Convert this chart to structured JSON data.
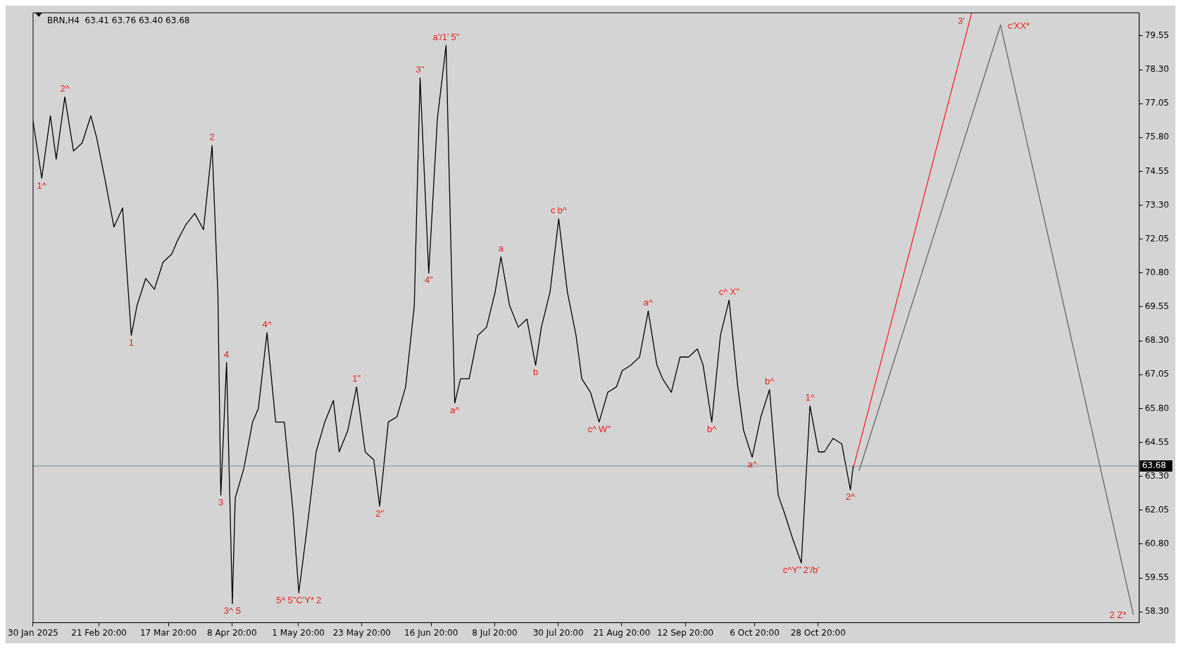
{
  "chart_data": {
    "type": "line",
    "title": "BRN,H4  63.41 63.76 63.40 63.68",
    "x": [
      "2025-01-30",
      "2025-02-02",
      "2025-02-05",
      "2025-02-07",
      "2025-02-10",
      "2025-02-13",
      "2025-02-16",
      "2025-02-19",
      "2025-02-21",
      "2025-02-24",
      "2025-02-27",
      "2025-03-02",
      "2025-03-05",
      "2025-03-07",
      "2025-03-10",
      "2025-03-13",
      "2025-03-16",
      "2025-03-19",
      "2025-03-21",
      "2025-03-24",
      "2025-03-27",
      "2025-03-30",
      "2025-04-02",
      "2025-04-04",
      "2025-04-05",
      "2025-04-07",
      "2025-04-09",
      "2025-04-10",
      "2025-04-13",
      "2025-04-16",
      "2025-04-18",
      "2025-04-21",
      "2025-04-24",
      "2025-04-27",
      "2025-04-30",
      "2025-05-02",
      "2025-05-05",
      "2025-05-08",
      "2025-05-11",
      "2025-05-14",
      "2025-05-16",
      "2025-05-19",
      "2025-05-22",
      "2025-05-25",
      "2025-05-28",
      "2025-05-30",
      "2025-06-02",
      "2025-06-05",
      "2025-06-08",
      "2025-06-11",
      "2025-06-13",
      "2025-06-16",
      "2025-06-19",
      "2025-06-22",
      "2025-06-25",
      "2025-06-27",
      "2025-06-30",
      "2025-07-03",
      "2025-07-06",
      "2025-07-09",
      "2025-07-11",
      "2025-07-14",
      "2025-07-17",
      "2025-07-20",
      "2025-07-23",
      "2025-07-25",
      "2025-07-28",
      "2025-07-31",
      "2025-08-03",
      "2025-08-06",
      "2025-08-08",
      "2025-08-11",
      "2025-08-14",
      "2025-08-17",
      "2025-08-20",
      "2025-08-22",
      "2025-08-25",
      "2025-08-28",
      "2025-08-31",
      "2025-09-03",
      "2025-09-05",
      "2025-09-08",
      "2025-09-11",
      "2025-09-14",
      "2025-09-17",
      "2025-09-19",
      "2025-09-22",
      "2025-09-25",
      "2025-09-28",
      "2025-10-01",
      "2025-10-03",
      "2025-10-06",
      "2025-10-09",
      "2025-10-12",
      "2025-10-15",
      "2025-10-17",
      "2025-10-20",
      "2025-10-23",
      "2025-10-26",
      "2025-10-29",
      "2025-10-31",
      "2025-11-03",
      "2025-11-06",
      "2025-11-09",
      "2025-11-10"
    ],
    "series": [
      {
        "color": "#000000",
        "values": [
          76.4,
          74.3,
          76.6,
          75.0,
          77.3,
          75.3,
          75.6,
          76.6,
          75.8,
          74.2,
          72.5,
          73.2,
          68.5,
          69.6,
          70.6,
          70.2,
          71.2,
          71.5,
          72.0,
          72.6,
          73.0,
          72.4,
          75.5,
          70.0,
          62.6,
          67.5,
          58.6,
          62.5,
          63.6,
          65.3,
          65.8,
          68.6,
          65.3,
          65.3,
          62.0,
          59.0,
          61.5,
          64.2,
          65.3,
          66.1,
          64.2,
          65.0,
          66.6,
          64.2,
          63.9,
          62.2,
          65.3,
          65.5,
          66.6,
          69.6,
          78.0,
          70.8,
          76.5,
          79.2,
          66.0,
          66.9,
          66.9,
          68.5,
          68.8,
          70.1,
          71.4,
          69.6,
          68.8,
          69.1,
          67.4,
          68.8,
          70.1,
          72.8,
          70.1,
          68.5,
          66.9,
          66.4,
          65.3,
          66.4,
          66.6,
          67.2,
          67.4,
          67.7,
          69.4,
          67.4,
          66.9,
          66.4,
          67.7,
          67.7,
          68.0,
          67.4,
          65.3,
          68.5,
          69.8,
          66.6,
          65.0,
          64.0,
          65.5,
          66.5,
          62.6,
          62.0,
          61.0,
          60.1,
          65.9,
          64.2,
          64.2,
          64.7,
          64.5,
          62.8,
          63.7
        ]
      },
      {
        "type": "line",
        "color": "#ff2020",
        "x": [
          "2025-11-10",
          "2025-12-21"
        ],
        "values": [
          63.6,
          80.4
        ]
      },
      {
        "type": "line",
        "color": "#646464",
        "x": [
          "2025-11-12",
          "2025-12-31",
          "2026-02-15"
        ],
        "values": [
          63.5,
          79.95,
          58.2
        ]
      }
    ],
    "xlim": [
      "2025-01-30",
      "2026-02-17"
    ],
    "xticks": [
      {
        "value": "2025-01-30",
        "label": "30 Jan 2025"
      },
      {
        "value": "2025-02-21T20:00",
        "label": "21 Feb 20:00"
      },
      {
        "value": "2025-03-17T20:00",
        "label": "17 Mar 20:00"
      },
      {
        "value": "2025-04-08T20:00",
        "label": "8 Apr 20:00"
      },
      {
        "value": "2025-05-01T20:00",
        "label": "1 May 20:00"
      },
      {
        "value": "2025-05-23T20:00",
        "label": "23 May 20:00"
      },
      {
        "value": "2025-06-16T20:00",
        "label": "16 Jun 20:00"
      },
      {
        "value": "2025-07-08T20:00",
        "label": "8 Jul 20:00"
      },
      {
        "value": "2025-07-30T20:00",
        "label": "30 Jul 20:00"
      },
      {
        "value": "2025-08-21T20:00",
        "label": "21 Aug 20:00"
      },
      {
        "value": "2025-09-12T20:00",
        "label": "12 Sep 20:00"
      },
      {
        "value": "2025-10-06T20:00",
        "label": "6 Oct 20:00"
      },
      {
        "value": "2025-10-28T20:00",
        "label": "28 Oct 20:00"
      }
    ],
    "ylim": [
      57.9,
      80.4
    ],
    "yticks": [
      {
        "value": 58.3,
        "label": "58.30"
      },
      59.55,
      {
        "value": 60.8,
        "label": "60.80"
      },
      62.05,
      {
        "value": 63.3,
        "label": "63.30"
      },
      64.55,
      {
        "value": 65.8,
        "label": "65.80"
      },
      67.05,
      {
        "value": 68.3,
        "label": "68.30"
      },
      69.55,
      {
        "value": 70.8,
        "label": "70.80"
      },
      72.05,
      {
        "value": 73.3,
        "label": "73.30"
      },
      74.55,
      {
        "value": 75.8,
        "label": "75.80"
      },
      77.05,
      {
        "value": 78.3,
        "label": "78.30"
      },
      79.55
    ],
    "ref_lines": [
      {
        "axis": "y",
        "value": 63.68,
        "label": "63.68",
        "color": "#7f8c99"
      }
    ],
    "annotations": [
      {
        "text": "1^",
        "x": "2025-02-02",
        "y": 74.3
      },
      {
        "text": "2^",
        "x": "2025-02-10",
        "y": 77.3
      },
      {
        "text": "1",
        "x": "2025-03-05",
        "y": 68.5
      },
      {
        "text": "2",
        "x": "2025-04-02",
        "y": 75.5
      },
      {
        "text": "3",
        "x": "2025-04-05",
        "y": 62.6
      },
      {
        "text": "4",
        "x": "2025-04-07",
        "y": 67.5
      },
      {
        "text": "3^ 5",
        "x": "2025-04-09",
        "y": 58.6
      },
      {
        "text": "4^",
        "x": "2025-04-21",
        "y": 68.6
      },
      {
        "text": "5^",
        "x": "2025-05-02",
        "y": 59.0
      },
      {
        "text": "5\"C'Y*",
        "x": "2025-05-02",
        "y": 59.0
      },
      {
        "text": "2",
        "x": "2025-05-02",
        "y": 59.0
      },
      {
        "text": "1\"",
        "x": "2025-05-22",
        "y": 66.6
      },
      {
        "text": "2\"",
        "x": "2025-05-30",
        "y": 62.2
      },
      {
        "text": "3\"",
        "x": "2025-06-13",
        "y": 78.0
      },
      {
        "text": "4\"",
        "x": "2025-06-16",
        "y": 70.8
      },
      {
        "text": "a'/1'",
        "x": "2025-06-22",
        "y": 79.2
      },
      {
        "text": "5\"",
        "x": "2025-06-22",
        "y": 79.2
      },
      {
        "text": "a^",
        "x": "2025-06-25",
        "y": 66.0
      },
      {
        "text": "a",
        "x": "2025-07-11",
        "y": 71.4
      },
      {
        "text": "b",
        "x": "2025-07-23",
        "y": 67.4
      },
      {
        "text": "c",
        "x": "2025-07-31",
        "y": 72.8
      },
      {
        "text": "b^",
        "x": "2025-07-31",
        "y": 72.8
      },
      {
        "text": "c^",
        "x": "2025-08-14",
        "y": 65.3
      },
      {
        "text": "W\"",
        "x": "2025-08-14",
        "y": 65.3
      },
      {
        "text": "a^",
        "x": "2025-08-31",
        "y": 69.4
      },
      {
        "text": "b^",
        "x": "2025-09-22",
        "y": 65.3
      },
      {
        "text": "c^",
        "x": "2025-09-28",
        "y": 69.8
      },
      {
        "text": "X\"",
        "x": "2025-09-28",
        "y": 69.8
      },
      {
        "text": "a^",
        "x": "2025-10-06",
        "y": 64.0
      },
      {
        "text": "b^",
        "x": "2025-10-12",
        "y": 66.5
      },
      {
        "text": "c^Y\"",
        "x": "2025-10-23",
        "y": 60.1
      },
      {
        "text": "2'/b'",
        "x": "2025-10-23",
        "y": 60.1
      },
      {
        "text": "1^",
        "x": "2025-10-26",
        "y": 65.9
      },
      {
        "text": "2^",
        "x": "2025-11-09",
        "y": 62.8
      },
      {
        "text": "3'",
        "x": "2025-12-21",
        "y": 80.4
      },
      {
        "text": "c'XX*",
        "x": "2025-12-31",
        "y": 79.95
      },
      {
        "text": "2 Z*",
        "x": "2026-02-15",
        "y": 58.2
      }
    ],
    "legend": false,
    "grid": false,
    "marker": "none",
    "line_style": "solid"
  }
}
